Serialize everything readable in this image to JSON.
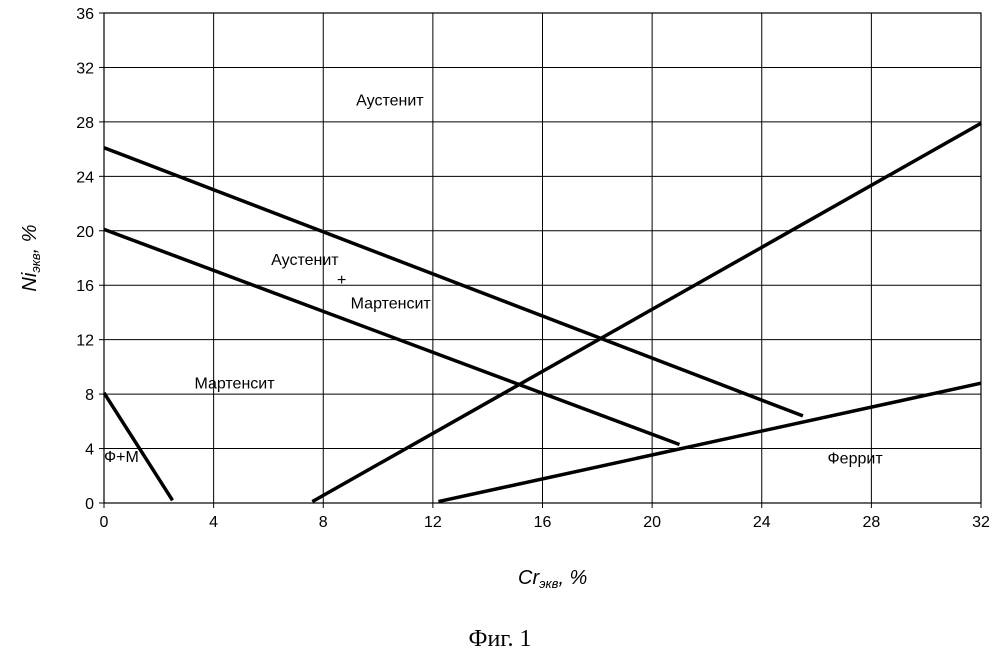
{
  "chart_data": {
    "type": "line",
    "xlim": [
      0,
      32
    ],
    "ylim": [
      0,
      36
    ],
    "x_ticks": [
      "0",
      "4",
      "8",
      "12",
      "16",
      "20",
      "24",
      "28",
      "32"
    ],
    "y_ticks": [
      "0",
      "4",
      "8",
      "12",
      "16",
      "20",
      "24",
      "28",
      "32",
      "36"
    ],
    "grid": true,
    "xlabel": {
      "main": "Cr",
      "sub": "экв",
      "suffix": ", %"
    },
    "ylabel": {
      "main": "Ni",
      "sub": "экв",
      "suffix": ", %"
    },
    "series": [
      {
        "points": [
          [
            0,
            26.1
          ],
          [
            25.5,
            6.4
          ]
        ]
      },
      {
        "points": [
          [
            0,
            20.1
          ],
          [
            21,
            4.3
          ]
        ]
      },
      {
        "points": [
          [
            0,
            8.1
          ],
          [
            2.5,
            0.2
          ]
        ]
      },
      {
        "points": [
          [
            7.6,
            0.1
          ],
          [
            32,
            27.9
          ]
        ]
      },
      {
        "points": [
          [
            12.2,
            0.1
          ],
          [
            32,
            8.8
          ]
        ]
      }
    ],
    "annotations": [
      {
        "text": "Аустенит",
        "x": 9.2,
        "y": 29.2
      },
      {
        "text": "Аустенит",
        "x": 6.1,
        "y": 17.5
      },
      {
        "text": "+",
        "x": 8.5,
        "y": 16.0
      },
      {
        "text": "Мартенсит",
        "x": 9.0,
        "y": 14.3
      },
      {
        "text": "Мартенсит",
        "x": 3.3,
        "y": 8.4
      },
      {
        "text": "Ф+М",
        "x": 0.0,
        "y": 3.0
      },
      {
        "text": "Феррит",
        "x": 26.4,
        "y": 2.9
      }
    ]
  },
  "caption": "Фиг. 1"
}
